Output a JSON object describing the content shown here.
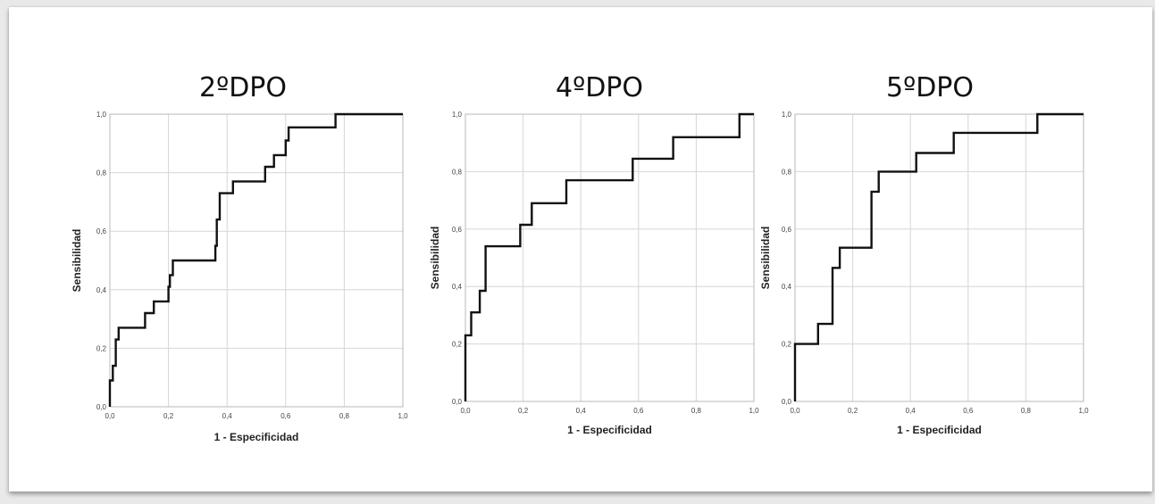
{
  "chart_data": [
    {
      "type": "line",
      "title": "2ºDPO",
      "xlabel": "1 - Especificidad",
      "ylabel": "Sensibilidad",
      "xlim": [
        0,
        1
      ],
      "ylim": [
        0,
        1
      ],
      "xticks": [
        "0,0",
        "0,2",
        "0,4",
        "0,6",
        "0,8",
        "1,0"
      ],
      "yticks": [
        "0,0",
        "0,2",
        "0,4",
        "0,6",
        "0,8",
        "1,0"
      ],
      "grid": true,
      "series": [
        {
          "x": [
            0,
            0,
            0.01,
            0.01,
            0.02,
            0.02,
            0.03,
            0.03,
            0.12,
            0.12,
            0.15,
            0.15,
            0.2,
            0.2,
            0.205,
            0.205,
            0.215,
            0.215,
            0.36,
            0.36,
            0.365,
            0.365,
            0.375,
            0.375,
            0.42,
            0.42,
            0.53,
            0.53,
            0.56,
            0.56,
            0.6,
            0.6,
            0.61,
            0.61,
            0.77,
            0.77,
            1.0
          ],
          "y": [
            0,
            0.09,
            0.09,
            0.14,
            0.14,
            0.23,
            0.23,
            0.27,
            0.27,
            0.32,
            0.32,
            0.36,
            0.36,
            0.41,
            0.41,
            0.45,
            0.45,
            0.5,
            0.5,
            0.55,
            0.55,
            0.64,
            0.64,
            0.73,
            0.73,
            0.77,
            0.77,
            0.82,
            0.82,
            0.86,
            0.86,
            0.91,
            0.91,
            0.955,
            0.955,
            1.0,
            1.0
          ]
        }
      ]
    },
    {
      "type": "line",
      "title": "4ºDPO",
      "xlabel": "1 - Especificidad",
      "ylabel": "Sensibilidad",
      "xlim": [
        0,
        1
      ],
      "ylim": [
        0,
        1
      ],
      "xticks": [
        "0,0",
        "0,2",
        "0,4",
        "0,6",
        "0,8",
        "1,0"
      ],
      "yticks": [
        "0,0",
        "0,2",
        "0,4",
        "0,6",
        "0,8",
        "1,0"
      ],
      "grid": true,
      "series": [
        {
          "x": [
            0,
            0,
            0.02,
            0.02,
            0.05,
            0.05,
            0.07,
            0.07,
            0.19,
            0.19,
            0.23,
            0.23,
            0.35,
            0.35,
            0.58,
            0.58,
            0.72,
            0.72,
            0.95,
            0.95,
            1.0
          ],
          "y": [
            0,
            0.23,
            0.23,
            0.31,
            0.31,
            0.385,
            0.385,
            0.54,
            0.54,
            0.615,
            0.615,
            0.69,
            0.69,
            0.77,
            0.77,
            0.845,
            0.845,
            0.92,
            0.92,
            1.0,
            1.0
          ]
        }
      ]
    },
    {
      "type": "line",
      "title": "5ºDPO",
      "xlabel": "1 - Especificidad",
      "ylabel": "Sensibilidad",
      "xlim": [
        0,
        1
      ],
      "ylim": [
        0,
        1
      ],
      "xticks": [
        "0,0",
        "0,2",
        "0,4",
        "0,6",
        "0,8",
        "1,0"
      ],
      "yticks": [
        "0,0",
        "0,2",
        "0,4",
        "0,6",
        "0,8",
        "1,0"
      ],
      "grid": true,
      "series": [
        {
          "x": [
            0,
            0,
            0.08,
            0.08,
            0.13,
            0.13,
            0.155,
            0.155,
            0.265,
            0.265,
            0.29,
            0.29,
            0.42,
            0.42,
            0.55,
            0.55,
            0.84,
            0.84,
            1.0
          ],
          "y": [
            0,
            0.2,
            0.2,
            0.27,
            0.27,
            0.465,
            0.465,
            0.535,
            0.535,
            0.73,
            0.73,
            0.8,
            0.8,
            0.865,
            0.865,
            0.935,
            0.935,
            1.0,
            1.0
          ]
        }
      ]
    }
  ]
}
